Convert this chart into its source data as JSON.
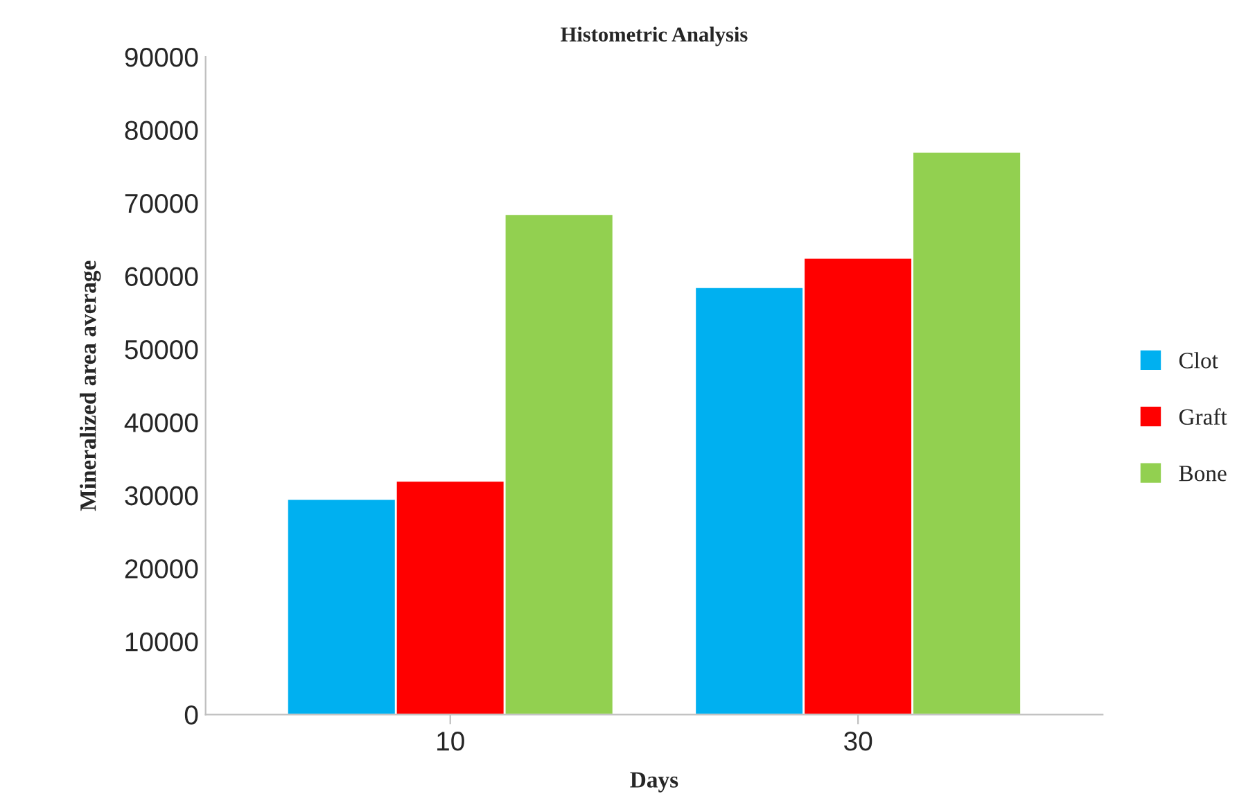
{
  "chart_data": {
    "type": "bar",
    "title": "Histometric Analysis",
    "xlabel": "Days",
    "ylabel": "Mineralized area average",
    "categories": [
      "10",
      "30"
    ],
    "series": [
      {
        "name": "Clot",
        "color": "#00b0f0",
        "values": [
          29500,
          58500
        ]
      },
      {
        "name": "Graft",
        "color": "#ff0000",
        "values": [
          32000,
          62500
        ]
      },
      {
        "name": "Bone",
        "color": "#92d050",
        "values": [
          68500,
          77000
        ]
      }
    ],
    "ylim": [
      0,
      90000
    ],
    "yticks": [
      0,
      10000,
      20000,
      30000,
      40000,
      50000,
      60000,
      70000,
      80000,
      90000
    ],
    "grid": false,
    "legend": "right"
  }
}
